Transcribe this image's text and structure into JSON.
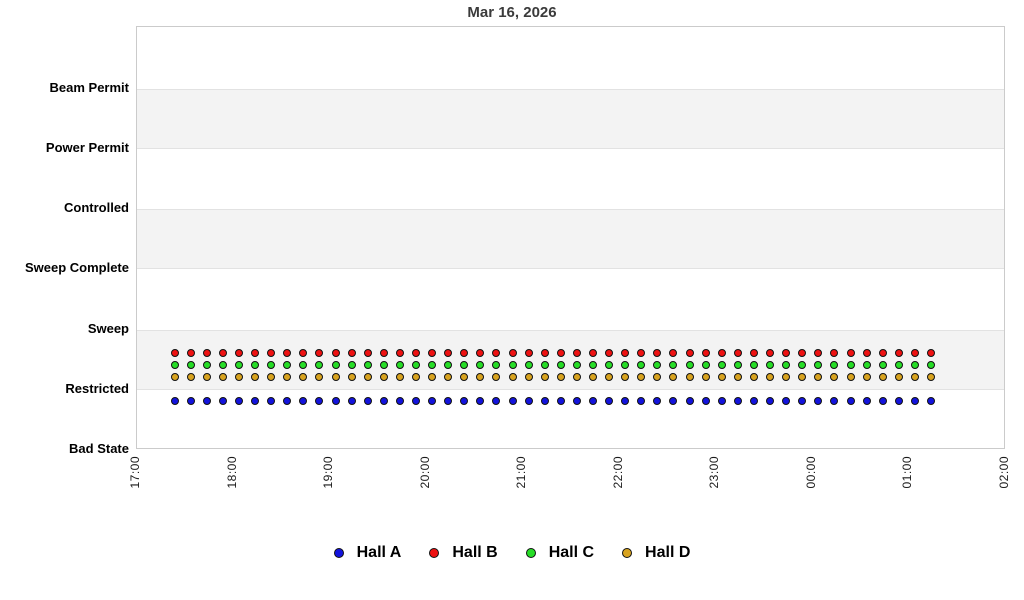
{
  "chart_data": {
    "type": "scatter",
    "title": "Mar 16, 2026",
    "x_axis": {
      "ticks": [
        "17:00",
        "18:00",
        "19:00",
        "20:00",
        "21:00",
        "22:00",
        "23:00",
        "00:00",
        "01:00",
        "02:00"
      ],
      "start": "17:00",
      "end": "02:00",
      "span_minutes": 540,
      "tick_rotation_degrees": -90
    },
    "y_axis": {
      "categories_bottom_to_top": [
        "Bad State",
        "Restricted",
        "Sweep",
        "Sweep Complete",
        "Controlled",
        "Power Permit",
        "Beam Permit"
      ],
      "shaded_band_pairs": [
        [
          1,
          2
        ],
        [
          3,
          4
        ],
        [
          5,
          6
        ]
      ],
      "grid": "alternating-bands"
    },
    "sample_times": [
      "17:24",
      "17:34",
      "17:44",
      "17:54",
      "18:04",
      "18:14",
      "18:24",
      "18:34",
      "18:44",
      "18:54",
      "19:04",
      "19:14",
      "19:24",
      "19:34",
      "19:44",
      "19:54",
      "20:04",
      "20:14",
      "20:24",
      "20:34",
      "20:44",
      "20:54",
      "21:04",
      "21:14",
      "21:24",
      "21:34",
      "21:44",
      "21:54",
      "22:04",
      "22:14",
      "22:24",
      "22:34",
      "22:44",
      "22:54",
      "23:04",
      "23:14",
      "23:24",
      "23:34",
      "23:44",
      "23:54",
      "00:04",
      "00:14",
      "00:24",
      "00:34",
      "00:44",
      "00:54",
      "01:04",
      "01:14"
    ],
    "series": [
      {
        "name": "Hall A",
        "color": "#1313dd",
        "state": "Restricted",
        "state_value": 1,
        "display_offset": -0.2
      },
      {
        "name": "Hall B",
        "color": "#ee1111",
        "state": "Restricted",
        "state_value": 1,
        "display_offset": 0.6
      },
      {
        "name": "Hall C",
        "color": "#27dd27",
        "state": "Restricted",
        "state_value": 1,
        "display_offset": 0.4
      },
      {
        "name": "Hall D",
        "color": "#d8a31f",
        "state": "Restricted",
        "state_value": 1,
        "display_offset": 0.2
      }
    ],
    "legend": {
      "position": "bottom",
      "entries": [
        "Hall A",
        "Hall B",
        "Hall C",
        "Hall D"
      ]
    },
    "colors": {
      "shaded_band": "#f3f3f3",
      "plot_border": "#cbcbcb",
      "title_text": "#3b3b3b",
      "axis_label_text": "#000000",
      "dot_outline": "#111111"
    }
  }
}
